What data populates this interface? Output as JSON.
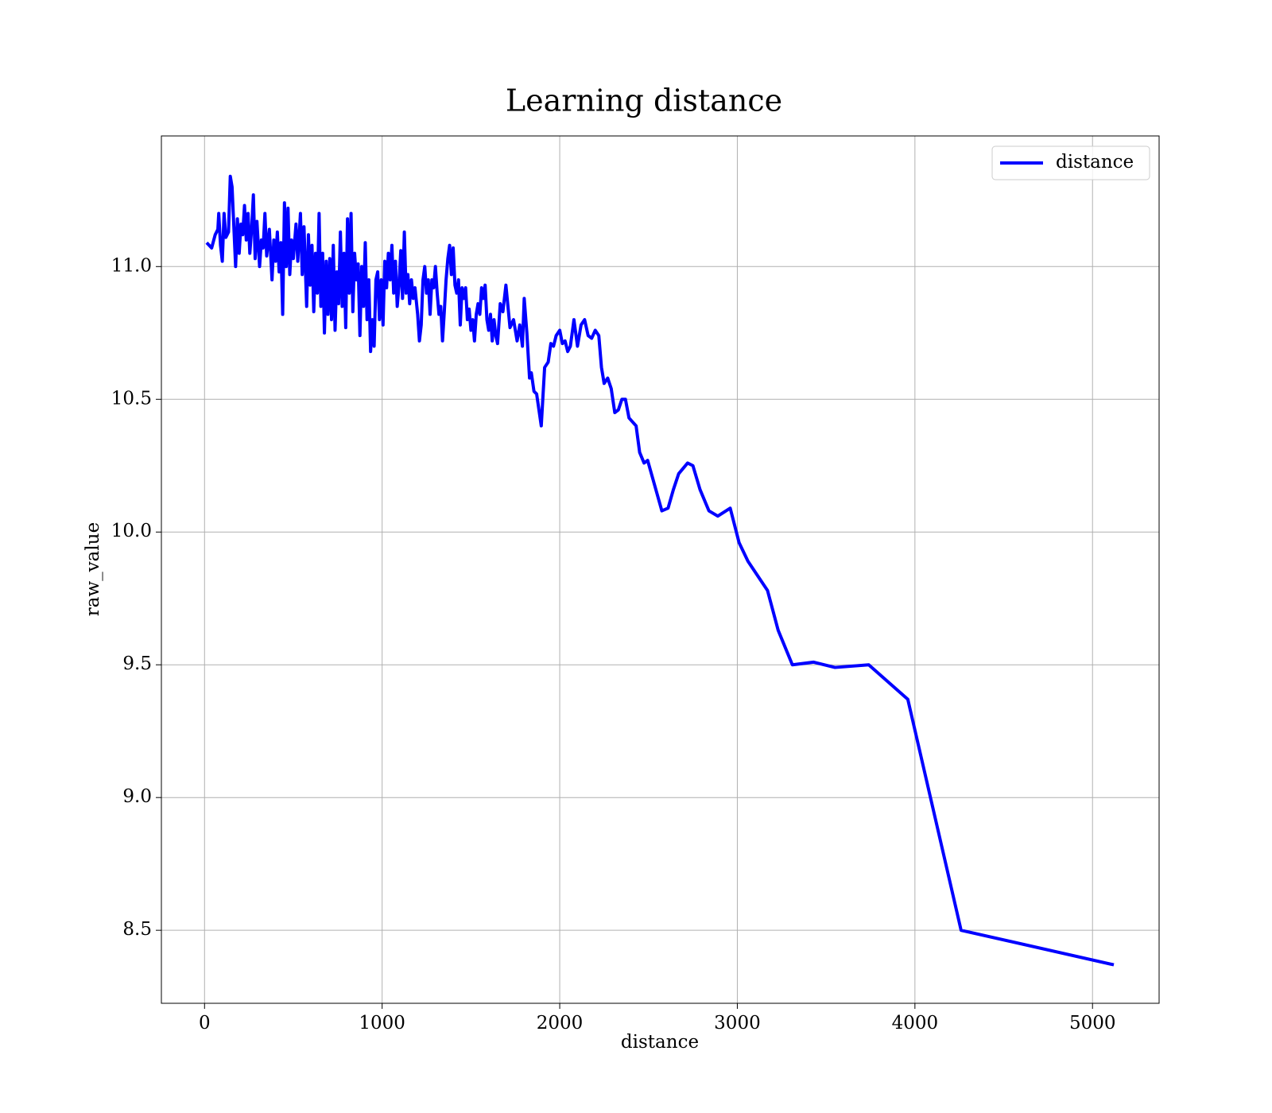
{
  "chart_data": {
    "type": "line",
    "title": "Learning distance",
    "x_label": "distance",
    "y_label": "raw_value",
    "x": [
      12,
      40,
      60,
      75,
      80,
      90,
      100,
      110,
      120,
      135,
      145,
      155,
      165,
      175,
      185,
      195,
      205,
      215,
      225,
      235,
      245,
      255,
      265,
      275,
      285,
      295,
      310,
      320,
      330,
      340,
      350,
      365,
      380,
      390,
      400,
      410,
      420,
      430,
      440,
      450,
      460,
      470,
      480,
      490,
      500,
      515,
      525,
      540,
      550,
      560,
      575,
      585,
      595,
      605,
      615,
      625,
      635,
      645,
      655,
      665,
      675,
      685,
      695,
      705,
      715,
      725,
      735,
      745,
      755,
      765,
      775,
      785,
      795,
      805,
      815,
      825,
      835,
      845,
      855,
      865,
      875,
      885,
      895,
      905,
      915,
      925,
      935,
      945,
      955,
      965,
      975,
      985,
      995,
      1005,
      1015,
      1025,
      1035,
      1045,
      1055,
      1065,
      1075,
      1085,
      1095,
      1105,
      1115,
      1125,
      1135,
      1145,
      1155,
      1165,
      1175,
      1185,
      1200,
      1210,
      1220,
      1230,
      1240,
      1250,
      1260,
      1270,
      1280,
      1290,
      1300,
      1310,
      1320,
      1330,
      1340,
      1350,
      1360,
      1370,
      1380,
      1390,
      1400,
      1410,
      1420,
      1430,
      1440,
      1450,
      1460,
      1470,
      1480,
      1490,
      1500,
      1510,
      1520,
      1530,
      1540,
      1550,
      1560,
      1570,
      1580,
      1590,
      1600,
      1610,
      1620,
      1630,
      1640,
      1650,
      1665,
      1680,
      1697,
      1720,
      1740,
      1760,
      1775,
      1790,
      1800,
      1815,
      1830,
      1840,
      1855,
      1870,
      1896,
      1915,
      1935,
      1950,
      1965,
      1980,
      2000,
      2015,
      2030,
      2045,
      2060,
      2080,
      2100,
      2120,
      2140,
      2160,
      2180,
      2200,
      2220,
      2235,
      2250,
      2270,
      2290,
      2310,
      2330,
      2350,
      2370,
      2390,
      2430,
      2450,
      2475,
      2495,
      2575,
      2610,
      2640,
      2670,
      2720,
      2750,
      2790,
      2840,
      2890,
      2960,
      3010,
      3060,
      3170,
      3230,
      3310,
      3430,
      3550,
      3740,
      3960,
      4260,
      5120
    ],
    "series": [
      {
        "name": "distance",
        "color": "#0000ff",
        "values": [
          11.09,
          11.07,
          11.12,
          11.14,
          11.2,
          11.08,
          11.02,
          11.2,
          11.11,
          11.13,
          11.34,
          11.3,
          11.15,
          11.0,
          11.18,
          11.05,
          11.16,
          11.12,
          11.23,
          11.1,
          11.2,
          11.05,
          11.14,
          11.27,
          11.03,
          11.17,
          11.0,
          11.1,
          11.07,
          11.2,
          11.04,
          11.14,
          10.95,
          11.1,
          11.02,
          11.13,
          10.98,
          11.09,
          10.82,
          11.24,
          11.0,
          11.22,
          10.97,
          11.1,
          11.03,
          11.16,
          11.02,
          11.2,
          10.97,
          11.15,
          10.85,
          11.12,
          10.93,
          11.08,
          10.83,
          11.05,
          10.9,
          11.2,
          10.85,
          11.05,
          10.75,
          11.02,
          10.82,
          11.03,
          10.8,
          11.08,
          10.76,
          10.98,
          10.86,
          11.13,
          10.85,
          11.05,
          10.77,
          11.18,
          10.9,
          11.2,
          10.83,
          11.05,
          10.95,
          11.01,
          10.74,
          11.0,
          10.85,
          11.09,
          10.8,
          10.95,
          10.68,
          10.8,
          10.7,
          10.95,
          10.98,
          10.8,
          10.95,
          10.78,
          11.02,
          10.92,
          11.05,
          10.95,
          11.08,
          10.9,
          11.02,
          10.85,
          10.93,
          11.06,
          10.88,
          11.13,
          10.9,
          10.97,
          10.86,
          10.95,
          10.88,
          10.92,
          10.82,
          10.72,
          10.78,
          10.95,
          11.0,
          10.9,
          10.95,
          10.82,
          10.95,
          10.92,
          11.0,
          10.9,
          10.82,
          10.85,
          10.72,
          10.83,
          10.95,
          11.03,
          11.08,
          10.97,
          11.07,
          10.93,
          10.9,
          10.95,
          10.78,
          10.92,
          10.88,
          10.92,
          10.8,
          10.84,
          10.76,
          10.8,
          10.72,
          10.82,
          10.86,
          10.82,
          10.92,
          10.88,
          10.93,
          10.8,
          10.76,
          10.82,
          10.72,
          10.8,
          10.74,
          10.71,
          10.86,
          10.83,
          10.93,
          10.77,
          10.8,
          10.72,
          10.78,
          10.7,
          10.88,
          10.75,
          10.58,
          10.6,
          10.53,
          10.52,
          10.4,
          10.62,
          10.64,
          10.71,
          10.7,
          10.74,
          10.76,
          10.71,
          10.72,
          10.68,
          10.7,
          10.8,
          10.7,
          10.78,
          10.8,
          10.74,
          10.73,
          10.76,
          10.74,
          10.62,
          10.56,
          10.58,
          10.54,
          10.45,
          10.46,
          10.5,
          10.5,
          10.43,
          10.4,
          10.3,
          10.26,
          10.27,
          10.08,
          10.09,
          10.16,
          10.22,
          10.26,
          10.25,
          10.16,
          10.08,
          10.06,
          10.09,
          9.96,
          9.89,
          9.78,
          9.63,
          9.5,
          9.51,
          9.49,
          9.5,
          9.37,
          8.5,
          8.37
        ]
      }
    ],
    "xlim": [
      -243,
      5375
    ],
    "ylim": [
      8.225,
      11.492
    ],
    "xticks": [
      0,
      1000,
      2000,
      3000,
      4000,
      5000
    ],
    "yticks": [
      8.5,
      {
        "value": 9,
        "label": "9.0"
      },
      9.5,
      {
        "value": 10,
        "label": "10.0"
      },
      10.5,
      {
        "value": 11,
        "label": "11.0"
      }
    ],
    "grid": true,
    "legend": "upper right"
  }
}
